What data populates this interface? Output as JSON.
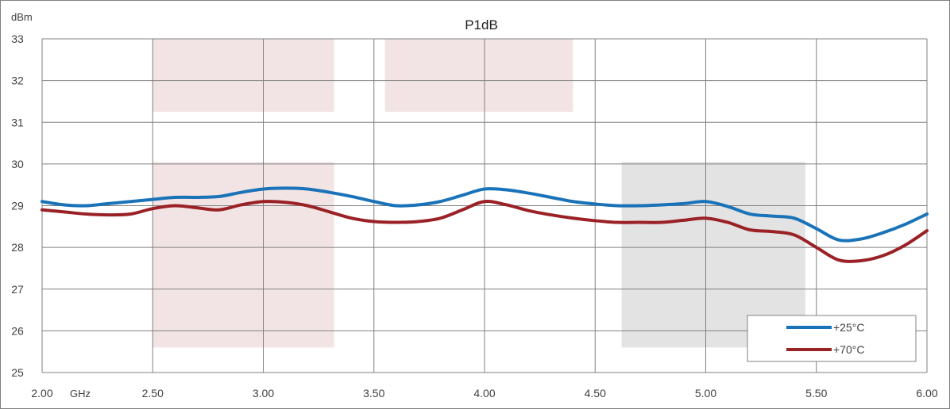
{
  "chart_data": {
    "type": "line",
    "title": "P1dB",
    "ylabel": "dBm",
    "xlabel": "GHz",
    "xlim": [
      2.0,
      6.0
    ],
    "ylim": [
      25,
      33
    ],
    "x_ticks": [
      "2.00",
      "2.50",
      "3.00",
      "3.50",
      "4.00",
      "4.50",
      "5.00",
      "5.50",
      "6.00"
    ],
    "y_ticks": [
      "25",
      "26",
      "27",
      "28",
      "29",
      "30",
      "31",
      "32",
      "33"
    ],
    "grid": true,
    "legend_position": "bottom-right",
    "shaded_regions": [
      {
        "x": [
          2.5,
          3.32
        ],
        "y": [
          31.25,
          33
        ],
        "color": "#f2e4e4"
      },
      {
        "x": [
          3.55,
          4.4
        ],
        "y": [
          31.25,
          33
        ],
        "color": "#f2e4e4"
      },
      {
        "x": [
          2.5,
          3.32
        ],
        "y": [
          25.6,
          30.05
        ],
        "color": "#f2e4e4"
      },
      {
        "x": [
          4.62,
          5.45
        ],
        "y": [
          25.6,
          30.05
        ],
        "color": "#e3e3e3"
      }
    ],
    "series": [
      {
        "name": "+25°C",
        "color": "#1a73b8",
        "x": [
          2.0,
          2.1,
          2.2,
          2.3,
          2.4,
          2.5,
          2.6,
          2.7,
          2.8,
          2.9,
          3.0,
          3.1,
          3.2,
          3.3,
          3.4,
          3.5,
          3.6,
          3.7,
          3.8,
          3.9,
          4.0,
          4.1,
          4.2,
          4.3,
          4.4,
          4.5,
          4.6,
          4.7,
          4.8,
          4.9,
          5.0,
          5.1,
          5.2,
          5.3,
          5.4,
          5.5,
          5.6,
          5.7,
          5.8,
          5.9,
          6.0
        ],
        "values": [
          29.1,
          29.02,
          29.0,
          29.05,
          29.1,
          29.15,
          29.2,
          29.2,
          29.22,
          29.32,
          29.4,
          29.42,
          29.4,
          29.32,
          29.22,
          29.1,
          29.0,
          29.02,
          29.1,
          29.25,
          29.4,
          29.38,
          29.3,
          29.2,
          29.1,
          29.04,
          29.0,
          29.0,
          29.02,
          29.05,
          29.1,
          28.98,
          28.8,
          28.75,
          28.7,
          28.45,
          28.18,
          28.2,
          28.35,
          28.55,
          28.8
        ]
      },
      {
        "name": "+70°C",
        "color": "#9a2125",
        "x": [
          2.0,
          2.1,
          2.2,
          2.3,
          2.4,
          2.5,
          2.6,
          2.7,
          2.8,
          2.9,
          3.0,
          3.1,
          3.2,
          3.3,
          3.4,
          3.5,
          3.6,
          3.7,
          3.8,
          3.9,
          4.0,
          4.1,
          4.2,
          4.3,
          4.4,
          4.5,
          4.6,
          4.7,
          4.8,
          4.9,
          5.0,
          5.1,
          5.2,
          5.3,
          5.4,
          5.5,
          5.6,
          5.7,
          5.8,
          5.9,
          6.0
        ],
        "values": [
          28.9,
          28.85,
          28.8,
          28.78,
          28.8,
          28.93,
          29.0,
          28.95,
          28.9,
          29.02,
          29.1,
          29.08,
          29.0,
          28.85,
          28.7,
          28.62,
          28.6,
          28.62,
          28.7,
          28.9,
          29.1,
          29.02,
          28.88,
          28.78,
          28.7,
          28.64,
          28.6,
          28.6,
          28.6,
          28.65,
          28.7,
          28.6,
          28.42,
          28.38,
          28.3,
          28.0,
          27.7,
          27.68,
          27.8,
          28.05,
          28.4
        ]
      }
    ]
  }
}
